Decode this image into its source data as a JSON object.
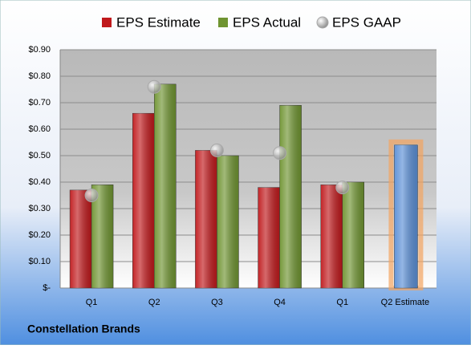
{
  "chart_data": {
    "type": "bar",
    "title": "Constellation Brands",
    "categories": [
      "Q1",
      "Q2",
      "Q3",
      "Q4",
      "Q1",
      "Q2 Estimate"
    ],
    "series": [
      {
        "name": "EPS Estimate",
        "color": "#c0191c",
        "values": [
          0.37,
          0.66,
          0.52,
          0.38,
          0.39,
          null
        ]
      },
      {
        "name": "EPS Actual",
        "color": "#6f9431",
        "values": [
          0.39,
          0.77,
          0.5,
          0.69,
          0.4,
          null
        ]
      },
      {
        "name": "EPS GAAP",
        "type": "scatter",
        "color": "#a9a9a9",
        "values": [
          0.35,
          0.76,
          0.52,
          0.51,
          0.38,
          null
        ]
      },
      {
        "color": "#5b8fd6",
        "values": [
          null,
          null,
          null,
          null,
          null,
          0.54
        ]
      }
    ],
    "ylim": [
      0,
      0.9
    ],
    "yticks": [
      {
        "value": 0,
        "label": "$-"
      },
      {
        "value": 0.1,
        "label": "$0.10"
      },
      {
        "value": 0.2,
        "label": "$0.20"
      },
      {
        "value": 0.3,
        "label": "$0.30"
      },
      {
        "value": 0.4,
        "label": "$0.40"
      },
      {
        "value": 0.5,
        "label": "$0.50"
      },
      {
        "value": 0.6,
        "label": "$0.60"
      },
      {
        "value": 0.7,
        "label": "$0.70"
      },
      {
        "value": 0.8,
        "label": "$0.80"
      },
      {
        "value": 0.9,
        "label": "$0.90"
      }
    ],
    "grid": true
  }
}
